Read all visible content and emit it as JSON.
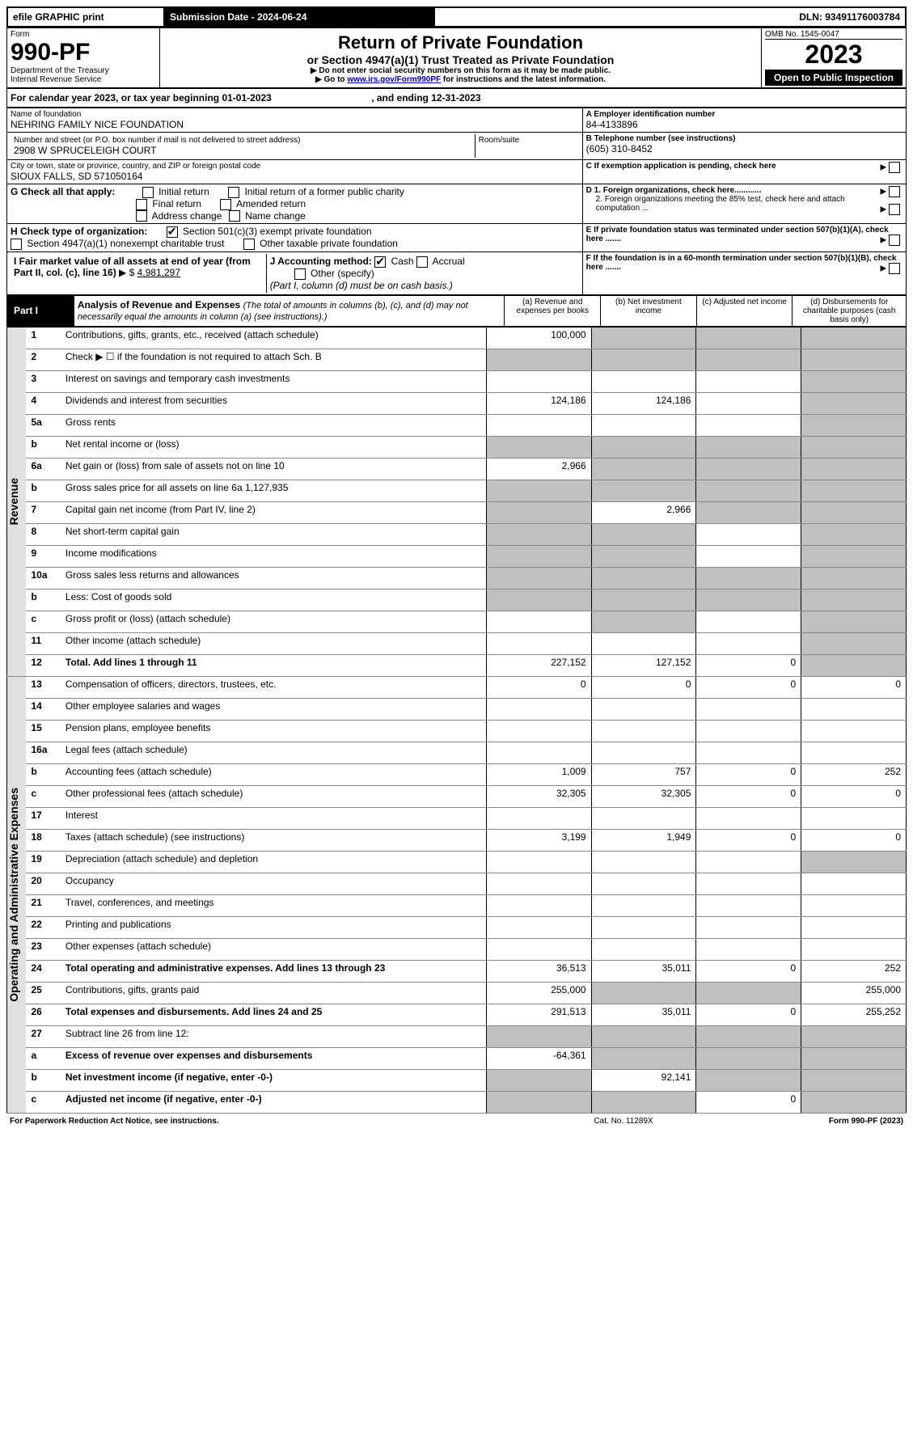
{
  "efile": {
    "print": "efile GRAPHIC print",
    "subdate_label": "Submission Date - 2024-06-24",
    "dln_label": "DLN: 93491176003784"
  },
  "header": {
    "form": "Form",
    "form_num": "990-PF",
    "dept": "Department of the Treasury",
    "irs": "Internal Revenue Service",
    "title": "Return of Private Foundation",
    "subtitle": "or Section 4947(a)(1) Trust Treated as Private Foundation",
    "note1": "▶ Do not enter social security numbers on this form as it may be made public.",
    "note2_pre": "▶ Go to ",
    "note2_link": "www.irs.gov/Form990PF",
    "note2_post": " for instructions and the latest information.",
    "omb": "OMB No. 1545-0047",
    "year": "2023",
    "openpub": "Open to Public Inspection"
  },
  "calyear": {
    "text_pre": "For calendar year 2023, or tax year beginning ",
    "begin": "01-01-2023",
    "mid": " , and ending ",
    "end": "12-31-2023"
  },
  "ident": {
    "name_label": "Name of foundation",
    "name": "NEHRING FAMILY NICE FOUNDATION",
    "addr_label": "Number and street (or P.O. box number if mail is not delivered to street address)",
    "addr": "2908 W SPRUCELEIGH COURT",
    "room_label": "Room/suite",
    "city_label": "City or town, state or province, country, and ZIP or foreign postal code",
    "city": "SIOUX FALLS, SD  571050164",
    "a_label": "A Employer identification number",
    "a_val": "84-4133896",
    "b_label": "B Telephone number (see instructions)",
    "b_val": "(605) 310-8452",
    "c_label": "C If exemption application is pending, check here",
    "d1_label": "D 1. Foreign organizations, check here............",
    "d2_label": "2. Foreign organizations meeting the 85% test, check here and attach computation ...",
    "e_label": "E If private foundation status was terminated under section 507(b)(1)(A), check here .......",
    "f_label": "F If the foundation is in a 60-month termination under section 507(b)(1)(B), check here .......",
    "g_label": "G Check all that apply:",
    "g_opts": [
      "Initial return",
      "Initial return of a former public charity",
      "Final return",
      "Amended return",
      "Address change",
      "Name change"
    ],
    "h_label": "H Check type of organization:",
    "h_opt1": "Section 501(c)(3) exempt private foundation",
    "h_opt2": "Section 4947(a)(1) nonexempt charitable trust",
    "h_opt3": "Other taxable private foundation",
    "i_label_1": "I Fair market value of all assets at end of year (from Part II, col. (c), line 16)",
    "i_val": "4,981,297",
    "j_label": "J Accounting method:",
    "j_cash": "Cash",
    "j_accr": "Accrual",
    "j_other": "Other (specify)",
    "j_note": "(Part I, column (d) must be on cash basis.)"
  },
  "part1": {
    "title": "Part I",
    "heading": "Analysis of Revenue and Expenses",
    "heading_note": "(The total of amounts in columns (b), (c), and (d) may not necessarily equal the amounts in column (a) (see instructions).)",
    "cols": {
      "a": "(a) Revenue and expenses per books",
      "b": "(b) Net investment income",
      "c": "(c) Adjusted net income",
      "d": "(d) Disbursements for charitable purposes (cash basis only)"
    }
  },
  "revenue_label": "Revenue",
  "expenses_label": "Operating and Administrative Expenses",
  "lines": {
    "l1": {
      "n": "1",
      "text": "Contributions, gifts, grants, etc., received (attach schedule)",
      "a": "100,000",
      "b": "",
      "c": "",
      "d": "",
      "b_blk": true,
      "c_blk": true,
      "d_blk": true
    },
    "l2": {
      "n": "2",
      "text": "Check ▶ ☐ if the foundation is not required to attach Sch. B",
      "a": "",
      "b": "",
      "c": "",
      "d": "",
      "a_blk": true,
      "b_blk": true,
      "c_blk": true,
      "d_blk": true
    },
    "l3": {
      "n": "3",
      "text": "Interest on savings and temporary cash investments",
      "a": "",
      "b": "",
      "c": "",
      "d": "",
      "d_blk": true
    },
    "l4": {
      "n": "4",
      "text": "Dividends and interest from securities",
      "a": "124,186",
      "b": "124,186",
      "c": "",
      "d": "",
      "d_blk": true
    },
    "l5a": {
      "n": "5a",
      "text": "Gross rents",
      "a": "",
      "b": "",
      "c": "",
      "d": "",
      "d_blk": true
    },
    "l5b": {
      "n": "b",
      "text": "Net rental income or (loss)",
      "a": "",
      "b": "",
      "c": "",
      "d": "",
      "a_blk": true,
      "b_blk": true,
      "c_blk": true,
      "d_blk": true
    },
    "l6a": {
      "n": "6a",
      "text": "Net gain or (loss) from sale of assets not on line 10",
      "a": "2,966",
      "b": "",
      "c": "",
      "d": "",
      "b_blk": true,
      "c_blk": true,
      "d_blk": true
    },
    "l6b": {
      "n": "b",
      "text": "Gross sales price for all assets on line 6a",
      "inline_val": "1,127,935",
      "a": "",
      "b": "",
      "c": "",
      "d": "",
      "a_blk": true,
      "b_blk": true,
      "c_blk": true,
      "d_blk": true
    },
    "l7": {
      "n": "7",
      "text": "Capital gain net income (from Part IV, line 2)",
      "a": "",
      "b": "2,966",
      "c": "",
      "d": "",
      "a_blk": true,
      "c_blk": true,
      "d_blk": true
    },
    "l8": {
      "n": "8",
      "text": "Net short-term capital gain",
      "a": "",
      "b": "",
      "c": "",
      "d": "",
      "a_blk": true,
      "b_blk": true,
      "d_blk": true
    },
    "l9": {
      "n": "9",
      "text": "Income modifications",
      "a": "",
      "b": "",
      "c": "",
      "d": "",
      "a_blk": true,
      "b_blk": true,
      "d_blk": true
    },
    "l10a": {
      "n": "10a",
      "text": "Gross sales less returns and allowances",
      "a": "",
      "b": "",
      "c": "",
      "d": "",
      "a_blk": true,
      "b_blk": true,
      "c_blk": true,
      "d_blk": true
    },
    "l10b": {
      "n": "b",
      "text": "Less: Cost of goods sold",
      "a": "",
      "b": "",
      "c": "",
      "d": "",
      "a_blk": true,
      "b_blk": true,
      "c_blk": true,
      "d_blk": true
    },
    "l10c": {
      "n": "c",
      "text": "Gross profit or (loss) (attach schedule)",
      "a": "",
      "b": "",
      "c": "",
      "d": "",
      "b_blk": true,
      "d_blk": true
    },
    "l11": {
      "n": "11",
      "text": "Other income (attach schedule)",
      "a": "",
      "b": "",
      "c": "",
      "d": "",
      "d_blk": true
    },
    "l12": {
      "n": "12",
      "text": "Total. Add lines 1 through 11",
      "bold": true,
      "a": "227,152",
      "b": "127,152",
      "c": "0",
      "d": "",
      "d_blk": true
    },
    "l13": {
      "n": "13",
      "text": "Compensation of officers, directors, trustees, etc.",
      "a": "0",
      "b": "0",
      "c": "0",
      "d": "0"
    },
    "l14": {
      "n": "14",
      "text": "Other employee salaries and wages",
      "a": "",
      "b": "",
      "c": "",
      "d": ""
    },
    "l15": {
      "n": "15",
      "text": "Pension plans, employee benefits",
      "a": "",
      "b": "",
      "c": "",
      "d": ""
    },
    "l16a": {
      "n": "16a",
      "text": "Legal fees (attach schedule)",
      "a": "",
      "b": "",
      "c": "",
      "d": ""
    },
    "l16b": {
      "n": "b",
      "text": "Accounting fees (attach schedule)",
      "a": "1,009",
      "b": "757",
      "c": "0",
      "d": "252"
    },
    "l16c": {
      "n": "c",
      "text": "Other professional fees (attach schedule)",
      "a": "32,305",
      "b": "32,305",
      "c": "0",
      "d": "0"
    },
    "l17": {
      "n": "17",
      "text": "Interest",
      "a": "",
      "b": "",
      "c": "",
      "d": ""
    },
    "l18": {
      "n": "18",
      "text": "Taxes (attach schedule) (see instructions)",
      "a": "3,199",
      "b": "1,949",
      "c": "0",
      "d": "0"
    },
    "l19": {
      "n": "19",
      "text": "Depreciation (attach schedule) and depletion",
      "a": "",
      "b": "",
      "c": "",
      "d": "",
      "d_blk": true
    },
    "l20": {
      "n": "20",
      "text": "Occupancy",
      "a": "",
      "b": "",
      "c": "",
      "d": ""
    },
    "l21": {
      "n": "21",
      "text": "Travel, conferences, and meetings",
      "a": "",
      "b": "",
      "c": "",
      "d": ""
    },
    "l22": {
      "n": "22",
      "text": "Printing and publications",
      "a": "",
      "b": "",
      "c": "",
      "d": ""
    },
    "l23": {
      "n": "23",
      "text": "Other expenses (attach schedule)",
      "a": "",
      "b": "",
      "c": "",
      "d": ""
    },
    "l24": {
      "n": "24",
      "text": "Total operating and administrative expenses. Add lines 13 through 23",
      "bold": true,
      "a": "36,513",
      "b": "35,011",
      "c": "0",
      "d": "252"
    },
    "l25": {
      "n": "25",
      "text": "Contributions, gifts, grants paid",
      "a": "255,000",
      "b": "",
      "c": "",
      "d": "255,000",
      "b_blk": true,
      "c_blk": true
    },
    "l26": {
      "n": "26",
      "text": "Total expenses and disbursements. Add lines 24 and 25",
      "bold": true,
      "a": "291,513",
      "b": "35,011",
      "c": "0",
      "d": "255,252"
    },
    "l27": {
      "n": "27",
      "text": "Subtract line 26 from line 12:",
      "a": "",
      "b": "",
      "c": "",
      "d": "",
      "a_blk": true,
      "b_blk": true,
      "c_blk": true,
      "d_blk": true
    },
    "l27a": {
      "n": "a",
      "text": "Excess of revenue over expenses and disbursements",
      "bold": true,
      "a": "-64,361",
      "b": "",
      "c": "",
      "d": "",
      "b_blk": true,
      "c_blk": true,
      "d_blk": true
    },
    "l27b": {
      "n": "b",
      "text": "Net investment income (if negative, enter -0-)",
      "bold": true,
      "a": "",
      "b": "92,141",
      "c": "",
      "d": "",
      "a_blk": true,
      "c_blk": true,
      "d_blk": true
    },
    "l27c": {
      "n": "c",
      "text": "Adjusted net income (if negative, enter -0-)",
      "bold": true,
      "a": "",
      "b": "",
      "c": "0",
      "d": "",
      "a_blk": true,
      "b_blk": true,
      "d_blk": true
    }
  },
  "footer": {
    "left": "For Paperwork Reduction Act Notice, see instructions.",
    "mid": "Cat. No. 11289X",
    "right": "Form 990-PF (2023)"
  }
}
